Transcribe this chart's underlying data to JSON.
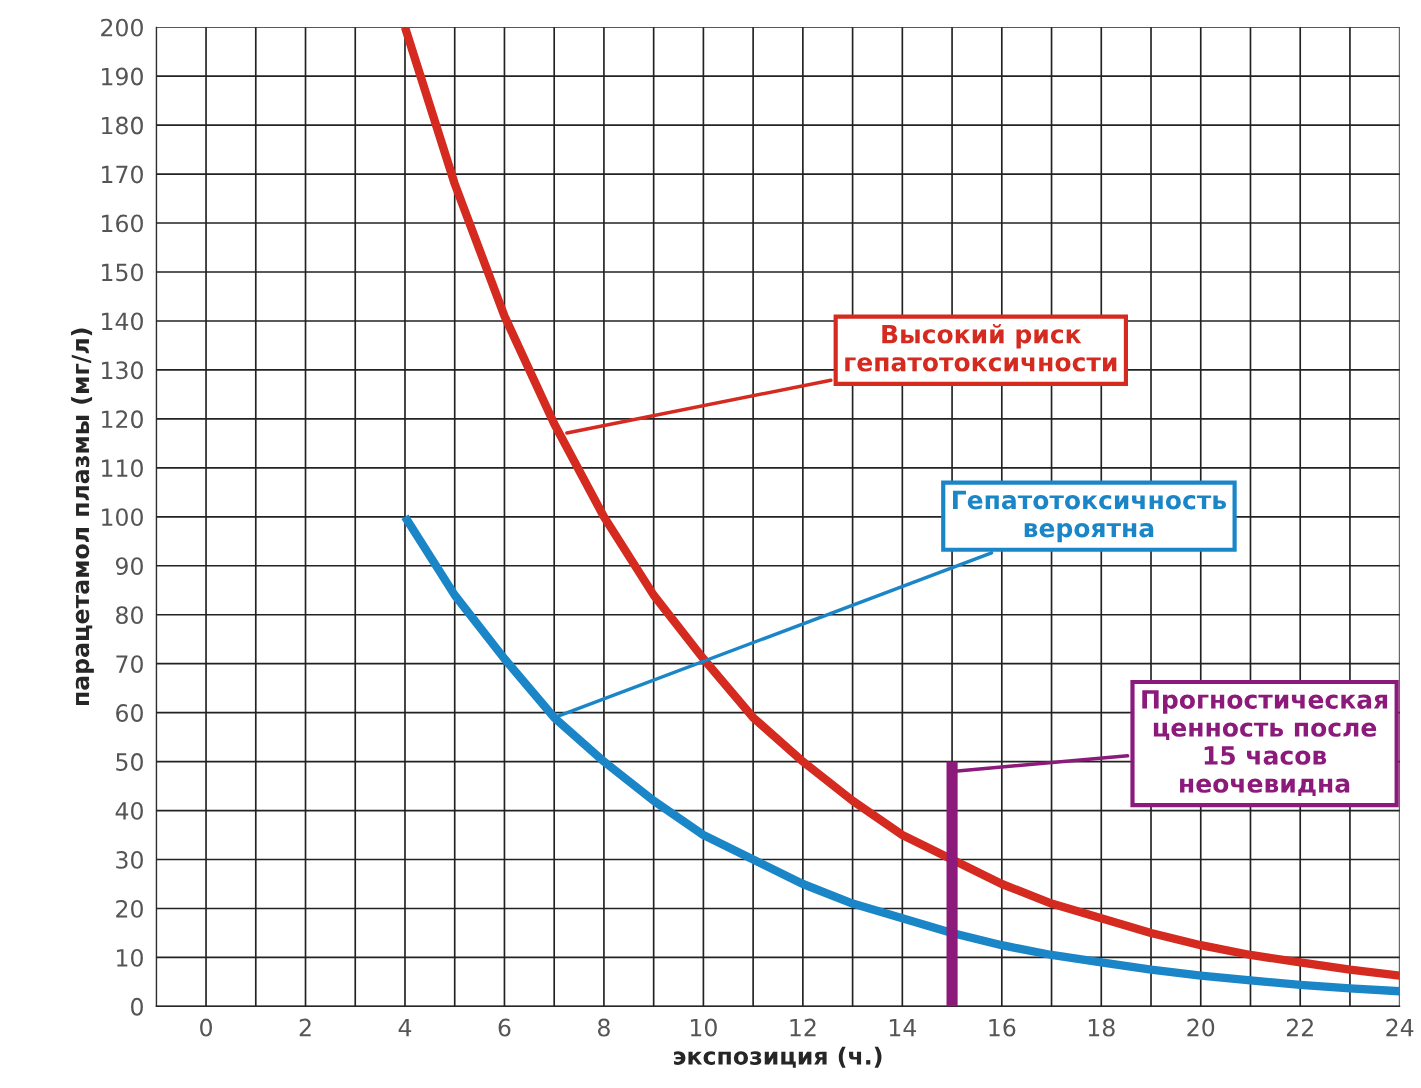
{
  "chart_data": {
    "type": "line",
    "xlabel": "экспозиция (ч.)",
    "ylabel": "парацетамол плазмы (мг/л)",
    "xlim": [
      -1,
      24
    ],
    "ylim": [
      0,
      200
    ],
    "xticks": [
      {
        "value": -1,
        "label": null
      },
      0,
      {
        "value": 1,
        "label": null
      },
      2,
      {
        "value": 3,
        "label": null
      },
      4,
      {
        "value": 5,
        "label": null
      },
      6,
      {
        "value": 7,
        "label": null
      },
      8,
      {
        "value": 9,
        "label": null
      },
      10,
      {
        "value": 11,
        "label": null
      },
      12,
      {
        "value": 13,
        "label": null
      },
      14,
      {
        "value": 15,
        "label": null
      },
      16,
      {
        "value": 17,
        "label": null
      },
      18,
      {
        "value": 19,
        "label": null
      },
      20,
      {
        "value": 21,
        "label": null
      },
      22,
      {
        "value": 23,
        "label": null
      },
      24
    ],
    "yticks": [
      0,
      10,
      20,
      30,
      40,
      50,
      60,
      70,
      80,
      90,
      100,
      110,
      120,
      130,
      140,
      150,
      160,
      170,
      180,
      190,
      200
    ],
    "grid": true,
    "series": [
      {
        "color": "#d42a1f",
        "x": [
          4,
          5,
          6,
          7,
          8,
          9,
          10,
          11,
          12,
          13,
          14,
          15,
          16,
          17,
          18,
          19,
          20,
          21,
          22,
          23,
          24
        ],
        "values": [
          200,
          168,
          141,
          119,
          100,
          84,
          71,
          59,
          50,
          42,
          35,
          30,
          25,
          21,
          18,
          15,
          12.5,
          10.5,
          9,
          7.5,
          6.3
        ]
      },
      {
        "color": "#1a86c8",
        "x": [
          4,
          5,
          6,
          7,
          8,
          9,
          10,
          11,
          12,
          13,
          14,
          15,
          16,
          17,
          18,
          19,
          20,
          21,
          22,
          23,
          24
        ],
        "values": [
          100,
          84,
          71,
          59,
          50,
          42,
          35,
          30,
          25,
          21,
          18,
          15,
          12.5,
          10.5,
          9,
          7.5,
          6.3,
          5.3,
          4.4,
          3.7,
          3.1
        ]
      },
      {
        "color": "#8b1a7a",
        "x": [
          15,
          15
        ],
        "values": [
          0,
          50
        ]
      }
    ],
    "annotations": [
      {
        "text": "Высокий риск\nгепатотоксичности",
        "x": 7.2,
        "y": 117
      },
      {
        "text": "Гепатотоксичность\nвероятна",
        "x": 7,
        "y": 59
      },
      {
        "text": "Прогностическая\nценность после\n15 часов\nнеочевидна",
        "x": 15,
        "y": 48
      }
    ]
  }
}
